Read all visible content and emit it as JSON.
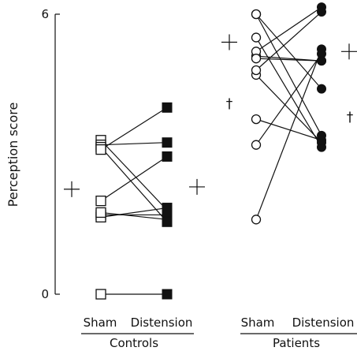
{
  "chart_data": {
    "type": "scatter",
    "title": "",
    "ylabel": "Perception score",
    "ylim": [
      0,
      6
    ],
    "yticks": [
      "0",
      "6"
    ],
    "groups": [
      {
        "name": "Controls",
        "conditions": [
          "Sham",
          "Distension"
        ],
        "sham_marker": "open-square",
        "distension_marker": "filled-square",
        "pairs": [
          {
            "sham": 0.0,
            "distension": 0.0
          },
          {
            "sham": 1.7,
            "distension": 1.7
          },
          {
            "sham": 1.65,
            "distension": 1.85
          },
          {
            "sham": 1.75,
            "distension": 1.6
          },
          {
            "sham": 2.0,
            "distension": 2.95
          },
          {
            "sham": 3.3,
            "distension": 1.8
          },
          {
            "sham": 3.2,
            "distension": 3.25
          },
          {
            "sham": 3.15,
            "distension": 1.55
          },
          {
            "sham": 3.1,
            "distension": 4.0
          }
        ],
        "mean_marker_left": 2.25,
        "mean_marker_right": 2.3
      },
      {
        "name": "Patients",
        "conditions": [
          "Sham",
          "Distension"
        ],
        "sham_marker": "open-circle",
        "distension_marker": "filled-circle",
        "pairs": [
          {
            "sham": 1.6,
            "distension": 5.25
          },
          {
            "sham": 3.2,
            "distension": 5.15
          },
          {
            "sham": 4.7,
            "distension": 3.25
          },
          {
            "sham": 5.5,
            "distension": 3.15
          },
          {
            "sham": 3.75,
            "distension": 3.3
          },
          {
            "sham": 6.0,
            "distension": 4.4
          },
          {
            "sham": 5.1,
            "distension": 5.0
          },
          {
            "sham": 5.2,
            "distension": 6.15
          },
          {
            "sham": 4.8,
            "distension": 6.05
          },
          {
            "sham": 6.0,
            "distension": 3.4
          },
          {
            "sham": 5.05,
            "distension": 5.0
          }
        ],
        "mean_marker_left": 5.4,
        "mean_marker_right": 5.2,
        "significance_left": "†",
        "significance_right": "†"
      }
    ]
  }
}
